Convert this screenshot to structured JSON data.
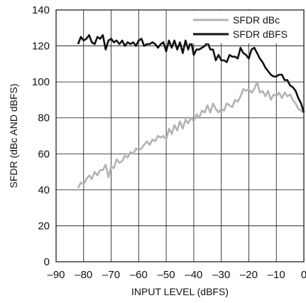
{
  "chart_data": {
    "type": "line",
    "title": "",
    "xlabel": "INPUT LEVEL (dBFS)",
    "ylabel": "SFDR (dBc AND dBFS)",
    "xlim": [
      -90,
      0
    ],
    "ylim": [
      0,
      140
    ],
    "x_ticks": [
      -90,
      -80,
      -70,
      -60,
      -50,
      -40,
      -30,
      -20,
      -10,
      0
    ],
    "x_tick_labels": [
      "–90",
      "–80",
      "–70",
      "–60",
      "–50",
      "–40",
      "–30",
      "–20",
      "–10",
      "0"
    ],
    "y_ticks": [
      0,
      20,
      40,
      60,
      80,
      100,
      120,
      140
    ],
    "y_tick_labels": [
      "0",
      "20",
      "40",
      "60",
      "80",
      "100",
      "120",
      "140"
    ],
    "grid": true,
    "legend_position": "top-right",
    "series": [
      {
        "name": "SFDR dBc",
        "color": "#b3b3b3",
        "x": [
          -82,
          -81,
          -80,
          -79,
          -78,
          -77,
          -76,
          -75,
          -74,
          -73,
          -72,
          -71,
          -70,
          -69,
          -68,
          -67,
          -66,
          -65,
          -64,
          -63,
          -62,
          -61,
          -60,
          -59,
          -58,
          -57,
          -56,
          -55,
          -54,
          -53,
          -52,
          -51,
          -50,
          -49,
          -48,
          -47,
          -46,
          -45,
          -44,
          -43,
          -42,
          -41,
          -40,
          -39,
          -38,
          -37,
          -36,
          -35,
          -34,
          -33,
          -32,
          -31,
          -30,
          -29,
          -28,
          -27,
          -26,
          -25,
          -24,
          -23,
          -22,
          -21,
          -20,
          -19,
          -18,
          -17,
          -16,
          -15,
          -14,
          -13,
          -12,
          -11,
          -10,
          -9,
          -8,
          -7,
          -6,
          -5,
          -4,
          -3,
          -2,
          -1,
          0
        ],
        "y": [
          41,
          44,
          43,
          46,
          48,
          46,
          50,
          48,
          51,
          51,
          54,
          47,
          53,
          52,
          57,
          55,
          56,
          59,
          58,
          61,
          60,
          63,
          62,
          63,
          65,
          67,
          65,
          68,
          67,
          70,
          69,
          70,
          68,
          74,
          71,
          76,
          73,
          78,
          74,
          79,
          77,
          80,
          78,
          82,
          80,
          84,
          83,
          87,
          83,
          88,
          85,
          83,
          85,
          84,
          88,
          87,
          86,
          90,
          89,
          92,
          96,
          95,
          96,
          94,
          96,
          100,
          94,
          95,
          92,
          95,
          90,
          93,
          92,
          94,
          91,
          94,
          92,
          93,
          90,
          88,
          85,
          84,
          83
        ]
      },
      {
        "name": "SFDR dBFS",
        "color": "#111111",
        "x": [
          -82,
          -81,
          -80,
          -79,
          -78,
          -77,
          -76,
          -75,
          -74,
          -73,
          -72,
          -71,
          -70,
          -69,
          -68,
          -67,
          -66,
          -65,
          -64,
          -63,
          -62,
          -61,
          -60,
          -59,
          -58,
          -57,
          -56,
          -55,
          -54,
          -53,
          -52,
          -51,
          -50,
          -49,
          -48,
          -47,
          -46,
          -45,
          -44,
          -43,
          -42,
          -41,
          -40,
          -39,
          -38,
          -37,
          -36,
          -35,
          -34,
          -33,
          -32,
          -31,
          -30,
          -29,
          -28,
          -27,
          -26,
          -25,
          -24,
          -23,
          -22,
          -21,
          -20,
          -19,
          -18,
          -17,
          -16,
          -15,
          -14,
          -13,
          -12,
          -11,
          -10,
          -9,
          -8,
          -7,
          -6,
          -5,
          -4,
          -3,
          -2,
          -1,
          0
        ],
        "y": [
          121,
          125,
          123,
          124,
          126,
          122,
          121,
          125,
          124,
          126,
          118,
          123,
          124,
          122,
          123,
          121,
          123,
          120,
          122,
          121,
          122,
          120,
          123,
          124,
          120,
          121,
          121,
          122,
          121,
          119,
          121,
          122,
          117,
          123,
          119,
          123,
          118,
          122,
          116,
          123,
          118,
          123,
          115,
          118,
          118,
          119,
          120,
          122,
          118,
          118,
          112,
          115,
          112,
          112,
          111,
          115,
          114,
          114,
          113,
          119,
          116,
          115,
          113,
          118,
          119,
          116,
          113,
          111,
          108,
          106,
          104,
          103,
          103,
          104,
          104,
          101,
          101,
          98,
          97,
          95,
          91,
          88,
          83
        ]
      }
    ]
  }
}
